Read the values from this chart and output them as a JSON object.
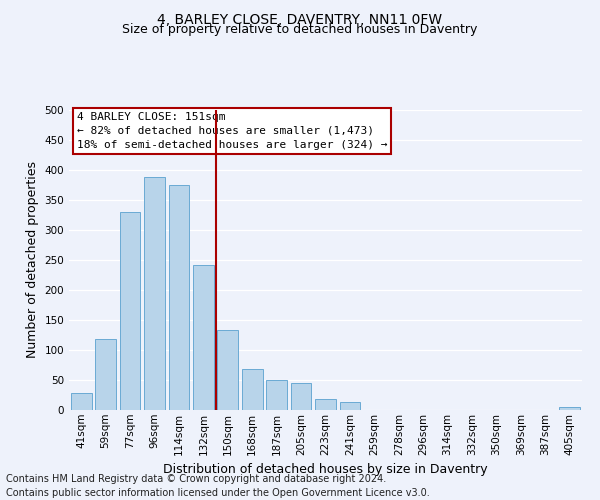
{
  "title": "4, BARLEY CLOSE, DAVENTRY, NN11 0FW",
  "subtitle": "Size of property relative to detached houses in Daventry",
  "xlabel": "Distribution of detached houses by size in Daventry",
  "ylabel": "Number of detached properties",
  "bar_labels": [
    "41sqm",
    "59sqm",
    "77sqm",
    "96sqm",
    "114sqm",
    "132sqm",
    "150sqm",
    "168sqm",
    "187sqm",
    "205sqm",
    "223sqm",
    "241sqm",
    "259sqm",
    "278sqm",
    "296sqm",
    "314sqm",
    "332sqm",
    "350sqm",
    "369sqm",
    "387sqm",
    "405sqm"
  ],
  "bar_values": [
    28,
    118,
    330,
    388,
    375,
    242,
    133,
    68,
    50,
    45,
    18,
    13,
    0,
    0,
    0,
    0,
    0,
    0,
    0,
    0,
    5
  ],
  "bar_color": "#b8d4ea",
  "bar_edge_color": "#6aaad4",
  "vline_index": 6,
  "vline_color": "#aa0000",
  "annotation_line1": "4 BARLEY CLOSE: 151sqm",
  "annotation_line2": "← 82% of detached houses are smaller (1,473)",
  "annotation_line3": "18% of semi-detached houses are larger (324) →",
  "ylim": [
    0,
    500
  ],
  "yticks": [
    0,
    50,
    100,
    150,
    200,
    250,
    300,
    350,
    400,
    450,
    500
  ],
  "footer_line1": "Contains HM Land Registry data © Crown copyright and database right 2024.",
  "footer_line2": "Contains public sector information licensed under the Open Government Licence v3.0.",
  "bg_color": "#eef2fb",
  "grid_color": "#ffffff",
  "title_fontsize": 10,
  "subtitle_fontsize": 9,
  "axis_label_fontsize": 9,
  "tick_fontsize": 7.5,
  "annotation_fontsize": 8,
  "footer_fontsize": 7
}
